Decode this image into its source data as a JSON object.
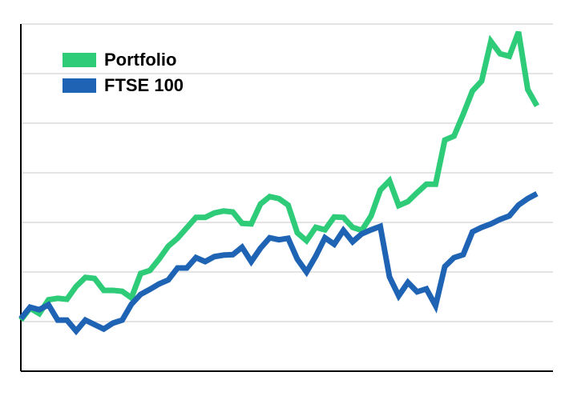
{
  "chart_data": {
    "type": "line",
    "series": [
      {
        "name": "Portfolio",
        "color": "#2ecb78",
        "values": [
          1.03,
          1.27,
          1.16,
          1.44,
          1.47,
          1.45,
          1.71,
          1.89,
          1.87,
          1.63,
          1.63,
          1.61,
          1.48,
          1.97,
          2.03,
          2.26,
          2.52,
          2.68,
          2.89,
          3.1,
          3.1,
          3.19,
          3.23,
          3.21,
          2.98,
          2.97,
          3.37,
          3.52,
          3.48,
          3.35,
          2.79,
          2.63,
          2.9,
          2.85,
          3.11,
          3.1,
          2.9,
          2.84,
          3.13,
          3.65,
          3.84,
          3.34,
          3.42,
          3.6,
          3.77,
          3.77,
          4.66,
          4.74,
          5.18,
          5.65,
          5.85,
          6.65,
          6.4,
          6.35,
          6.84,
          5.68,
          5.35
        ]
      },
      {
        "name": "FTSE 100",
        "color": "#1f64b4",
        "values": [
          1.06,
          1.29,
          1.24,
          1.34,
          1.03,
          1.03,
          0.81,
          1.03,
          0.94,
          0.85,
          0.97,
          1.03,
          1.35,
          1.55,
          1.65,
          1.76,
          1.84,
          2.08,
          2.08,
          2.29,
          2.21,
          2.31,
          2.34,
          2.35,
          2.5,
          2.21,
          2.48,
          2.69,
          2.65,
          2.68,
          2.26,
          2.0,
          2.32,
          2.69,
          2.56,
          2.84,
          2.61,
          2.77,
          2.85,
          2.92,
          1.9,
          1.52,
          1.79,
          1.6,
          1.66,
          1.32,
          2.11,
          2.29,
          2.35,
          2.81,
          2.9,
          2.97,
          3.06,
          3.13,
          3.35,
          3.48,
          3.58
        ]
      }
    ],
    "ylim": [
      0,
      7
    ],
    "yticks": [
      0,
      1,
      2,
      3,
      4,
      5,
      6,
      7
    ],
    "grid": true,
    "legend": "upper left"
  }
}
